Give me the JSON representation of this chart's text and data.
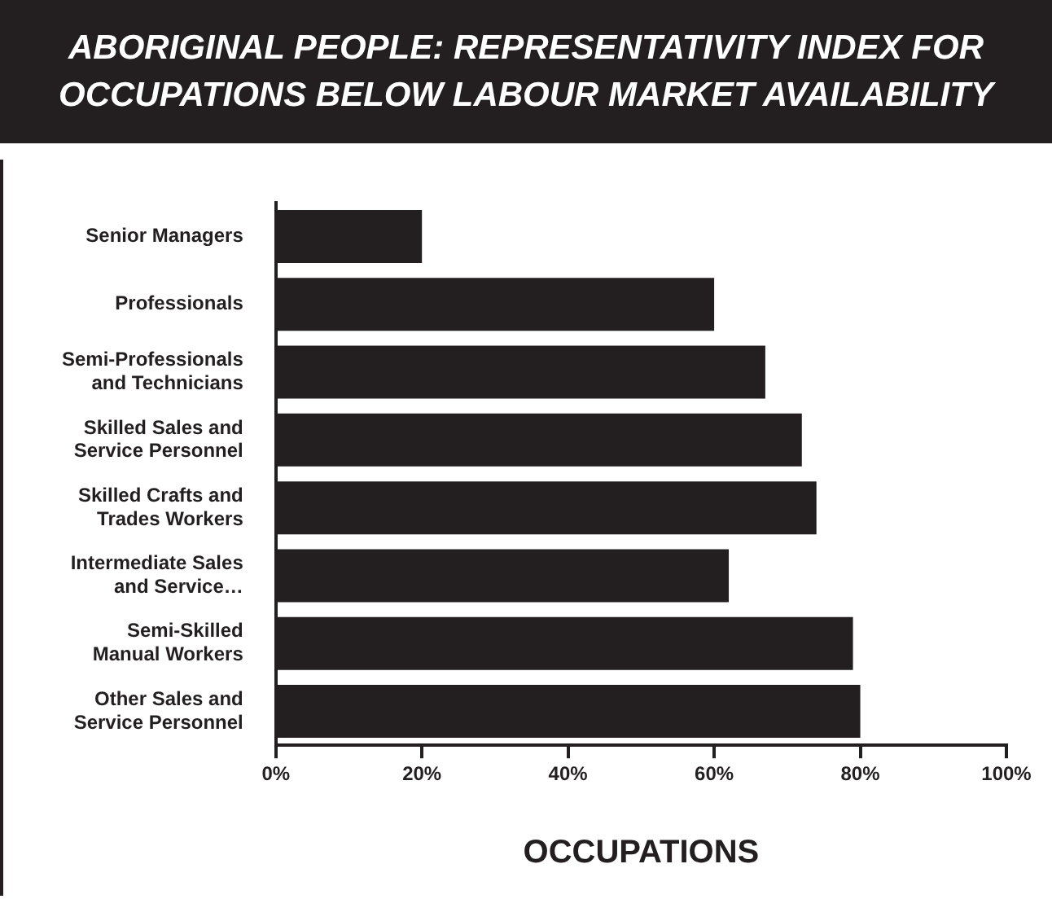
{
  "chart_data": {
    "type": "bar",
    "orientation": "horizontal",
    "title": "ABORIGINAL PEOPLE: REPRESENTATIVITY INDEX FOR OCCUPATIONS BELOW LABOUR MARKET AVAILABILITY",
    "xlabel": "OCCUPATIONS",
    "categories": [
      "Senior Managers",
      "Professionals",
      "Semi-Professionals and Technicians",
      "Skilled Sales and Service Personnel",
      "Skilled Crafts and Trades Workers",
      "Intermediate Sales and Service…",
      "Semi-Skilled Manual Workers",
      "Other Sales and Service Personnel"
    ],
    "values": [
      20,
      60,
      67,
      72,
      74,
      62,
      79,
      80
    ],
    "color": "#231f20",
    "xlim": [
      0,
      100
    ],
    "xticks": [
      {
        "value": 0,
        "label": "0%"
      },
      {
        "value": 20,
        "label": "20%"
      },
      {
        "value": 40,
        "label": "40%"
      },
      {
        "value": 60,
        "label": "60%"
      },
      {
        "value": 80,
        "label": "80%"
      },
      {
        "value": 100,
        "label": "100%"
      }
    ],
    "grid": false,
    "legend": false
  }
}
